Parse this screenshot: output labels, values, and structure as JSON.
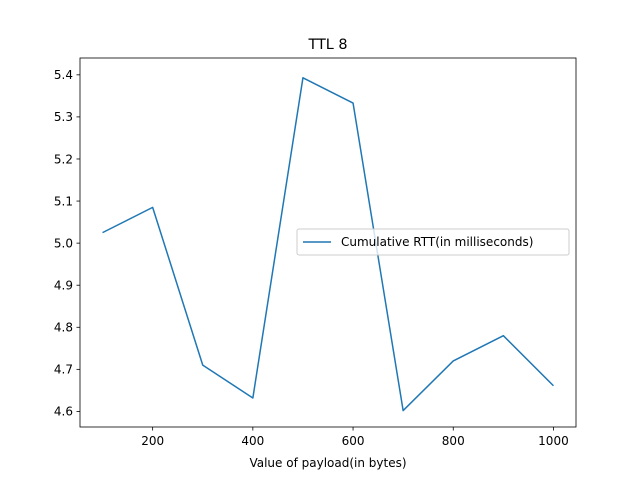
{
  "chart_data": {
    "type": "line",
    "title": "TTL 8",
    "xlabel": "Value of payload(in bytes)",
    "ylabel": "",
    "xlim": [
      55,
      1045
    ],
    "ylim": [
      4.563,
      5.44
    ],
    "xticks": [
      200,
      400,
      600,
      800,
      1000
    ],
    "xtick_labels": [
      "200",
      "400",
      "600",
      "800",
      "1000"
    ],
    "yticks": [
      4.6,
      4.7,
      4.8,
      4.9,
      5.0,
      5.1,
      5.2,
      5.3,
      5.4
    ],
    "ytick_labels": [
      "4.6",
      "4.7",
      "4.8",
      "4.9",
      "5.0",
      "5.1",
      "5.2",
      "5.3",
      "5.4"
    ],
    "grid": false,
    "legend_position": "center-right",
    "series": [
      {
        "name": "Cumulative RTT(in milliseconds)",
        "color": "#1f77b4",
        "x": [
          100,
          200,
          300,
          400,
          500,
          600,
          700,
          800,
          900,
          1000
        ],
        "y": [
          5.025,
          5.085,
          4.71,
          4.632,
          5.393,
          5.333,
          4.602,
          4.72,
          4.78,
          4.661
        ]
      }
    ]
  }
}
